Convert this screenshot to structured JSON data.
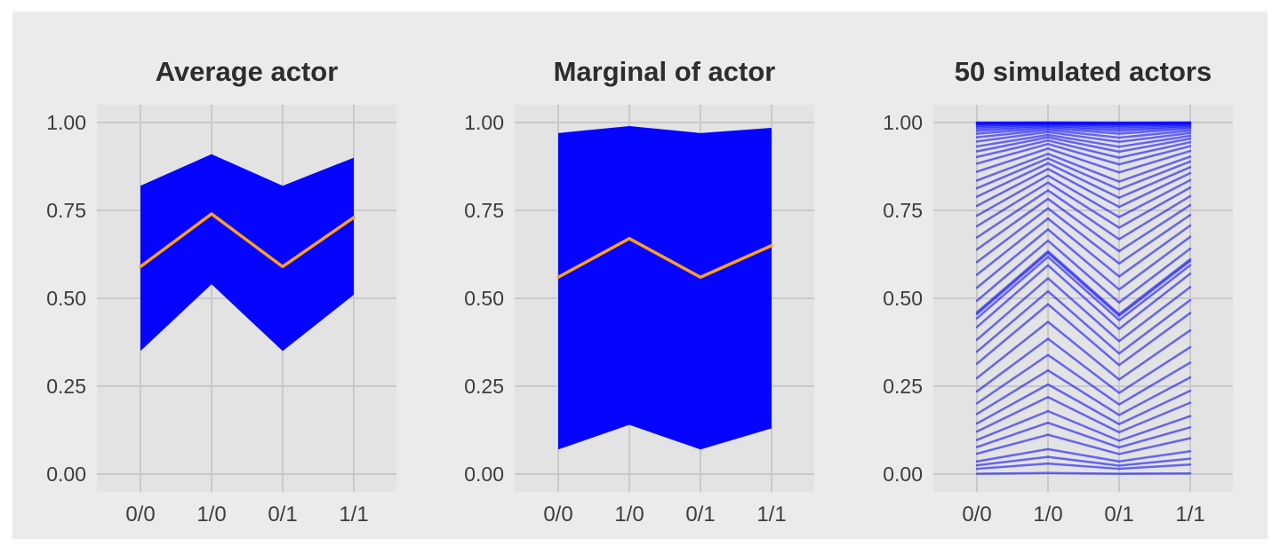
{
  "page": {
    "background": "#ffffff",
    "figure_background": "#ebebeb"
  },
  "style": {
    "panel_bg": "#e3e3e3",
    "grid_color": "#c9c9c9",
    "band_color": "#0505ff",
    "mean_color": "#ffa020",
    "sim_color": "#0808ff",
    "sim_opacity": 0.58,
    "tick_color": "#3d3d3d",
    "title_color": "#2d2d2d"
  },
  "axes": {
    "x_ticks": [
      "0/0",
      "1/0",
      "0/1",
      "1/1"
    ],
    "y_ticks": [
      "1.00",
      "0.75",
      "0.50",
      "0.25",
      "0.00"
    ],
    "y_values": [
      1.0,
      0.75,
      0.5,
      0.25,
      0.0
    ]
  },
  "chart_data": [
    {
      "type": "area+line",
      "title": "Average actor",
      "categories": [
        "0/0",
        "1/0",
        "0/1",
        "1/1"
      ],
      "band_upper": [
        0.82,
        0.91,
        0.82,
        0.9
      ],
      "band_lower": [
        0.35,
        0.54,
        0.35,
        0.51
      ],
      "mean": [
        0.59,
        0.74,
        0.59,
        0.73
      ],
      "xlabel": "",
      "ylabel": "",
      "ylim": [
        0,
        1
      ],
      "grid": true,
      "legend": "none"
    },
    {
      "type": "area+line",
      "title": "Marginal of actor",
      "categories": [
        "0/0",
        "1/0",
        "0/1",
        "1/1"
      ],
      "band_upper": [
        0.97,
        0.99,
        0.97,
        0.985
      ],
      "band_lower": [
        0.07,
        0.14,
        0.07,
        0.13
      ],
      "mean": [
        0.56,
        0.67,
        0.56,
        0.65
      ],
      "xlabel": "",
      "ylabel": "",
      "ylim": [
        0,
        1
      ],
      "grid": true,
      "legend": "none"
    },
    {
      "type": "line",
      "title": "50 simulated actors",
      "categories": [
        "0/0",
        "1/0",
        "0/1",
        "1/1"
      ],
      "xlabel": "",
      "ylabel": "",
      "ylim": [
        0,
        1
      ],
      "grid": true,
      "legend": "none",
      "series": [
        [
          0.001,
          0.003,
          0.001,
          0.002
        ],
        [
          0.015,
          0.03,
          0.015,
          0.027
        ],
        [
          0.025,
          0.049,
          0.024,
          0.044
        ],
        [
          0.036,
          0.071,
          0.036,
          0.065
        ],
        [
          0.058,
          0.112,
          0.057,
          0.102
        ],
        [
          0.077,
          0.146,
          0.076,
          0.133
        ],
        [
          0.097,
          0.179,
          0.095,
          0.165
        ],
        [
          0.121,
          0.219,
          0.119,
          0.203
        ],
        [
          0.144,
          0.255,
          0.142,
          0.237
        ],
        [
          0.171,
          0.295,
          0.168,
          0.275
        ],
        [
          0.201,
          0.339,
          0.198,
          0.317
        ],
        [
          0.235,
          0.385,
          0.231,
          0.361
        ],
        [
          0.273,
          0.433,
          0.269,
          0.409
        ],
        [
          0.314,
          0.483,
          0.31,
          0.458
        ],
        [
          0.348,
          0.52,
          0.343,
          0.495
        ],
        [
          0.382,
          0.557,
          0.378,
          0.532
        ],
        [
          0.418,
          0.594,
          0.413,
          0.57
        ],
        [
          0.443,
          0.618,
          0.438,
          0.594
        ],
        [
          0.455,
          0.629,
          0.45,
          0.606
        ],
        [
          0.46,
          0.634,
          0.455,
          0.611
        ],
        [
          0.493,
          0.664,
          0.488,
          0.641
        ],
        [
          0.53,
          0.696,
          0.525,
          0.675
        ],
        [
          0.567,
          0.727,
          0.562,
          0.707
        ],
        [
          0.603,
          0.756,
          0.599,
          0.737
        ],
        [
          0.639,
          0.783,
          0.634,
          0.765
        ],
        [
          0.673,
          0.807,
          0.668,
          0.791
        ],
        [
          0.705,
          0.829,
          0.701,
          0.815
        ],
        [
          0.735,
          0.849,
          0.731,
          0.836
        ],
        [
          0.763,
          0.868,
          0.76,
          0.856
        ],
        [
          0.789,
          0.884,
          0.786,
          0.873
        ],
        [
          0.813,
          0.898,
          0.81,
          0.889
        ],
        [
          0.835,
          0.911,
          0.832,
          0.903
        ],
        [
          0.86,
          0.926,
          0.858,
          0.919
        ],
        [
          0.883,
          0.939,
          0.881,
          0.933
        ],
        [
          0.902,
          0.949,
          0.9,
          0.944
        ],
        [
          0.918,
          0.958,
          0.917,
          0.954
        ],
        [
          0.932,
          0.965,
          0.931,
          0.962
        ],
        [
          0.946,
          0.973,
          0.945,
          0.97
        ],
        [
          0.958,
          0.979,
          0.957,
          0.977
        ],
        [
          0.968,
          0.984,
          0.968,
          0.983
        ],
        [
          0.976,
          0.988,
          0.976,
          0.987
        ],
        [
          0.982,
          0.991,
          0.982,
          0.99
        ],
        [
          0.987,
          0.994,
          0.987,
          0.993
        ],
        [
          0.991,
          0.996,
          0.991,
          0.995
        ],
        [
          0.994,
          0.997,
          0.994,
          0.997
        ],
        [
          0.996,
          0.998,
          0.996,
          0.998
        ],
        [
          0.998,
          0.999,
          0.997,
          0.999
        ],
        [
          0.999,
          0.999,
          0.999,
          0.999
        ],
        [
          0.999,
          1.0,
          0.999,
          1.0
        ],
        [
          1.0,
          1.0,
          1.0,
          1.0
        ]
      ]
    }
  ]
}
